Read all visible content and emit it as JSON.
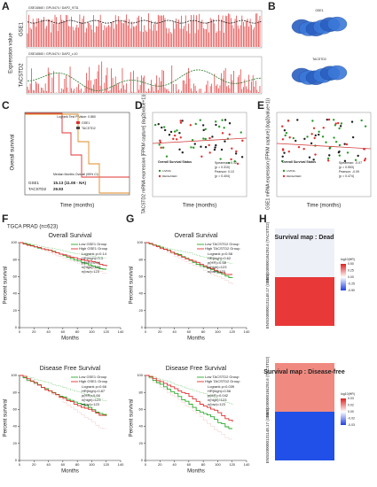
{
  "panels": {
    "A": {
      "label": "A",
      "top_header": "GSE16560 / GPL5474 / DAP2_9731",
      "bottom_header": "GSE16560 / GPL5474 / DAP2_c.10",
      "y_label": "Expression value",
      "genes": [
        "GSE1",
        "TACSTD2"
      ]
    },
    "B": {
      "label": "B",
      "genes": [
        "GSE1",
        "TACSTD2"
      ]
    },
    "C": {
      "label": "C",
      "y_label": "Overall survival",
      "x_label": "Time (months)",
      "logrank": "Logrank Test P Value: 0.880",
      "legend": [
        "GSE1",
        "TACSTD2"
      ],
      "median_title": "Median Months Overall (95% CI)",
      "median_rows": [
        [
          "GSE1",
          "15.13 (11.08 - NA)"
        ],
        [
          "TACSTD2",
          "29.83"
        ]
      ]
    },
    "D": {
      "label": "D",
      "y_label": "TACSTD2 mRNA expression [FPKM capture] (log2(value+1))",
      "x_label": "Time (months)",
      "legend_title": "Overall Survival Status",
      "legend": [
        "LIVING",
        "DECEASED"
      ],
      "stats": [
        "Spearman: 0.12",
        "(p = 0.310)",
        "Pearson: 0.10",
        "(p = 0.404)"
      ]
    },
    "E": {
      "label": "E",
      "y_label": "GSE1 mRNA expression [FPKM capture] (log2(value+1))",
      "x_label": "Time (months)",
      "legend_title": "Overall Survival Status",
      "legend": [
        "LIVING",
        "DECEASED"
      ],
      "stats": [
        "Spearman: -0.07",
        "(p = 0.553)",
        "Pearson: -0.09",
        "(p = 0.474)"
      ]
    },
    "F": {
      "label": "F",
      "cohort": "TGCA PRAD (n=623)",
      "y_label": "Percent survival",
      "x_label": "Months",
      "xticks": [
        0,
        20,
        40,
        60,
        80,
        100,
        120,
        140
      ],
      "yticks": [
        0,
        20,
        40,
        60,
        80,
        100
      ],
      "legend": [
        "Low GSE1 Group",
        "High GSE1 Group"
      ],
      "os": {
        "title": "Overall Survival",
        "stats": [
          "Logrank p=0.14",
          "HR(high)=3.3",
          "p(HR)=0.16",
          "n(high)=123",
          "n(low)=123"
        ]
      },
      "dfs": {
        "title": "Disease Free Survival",
        "stats": [
          "Logrank p=0.66",
          "HR(high)=0.87",
          "p(HR)=0.66",
          "n(high)=123",
          "n(low)=123"
        ]
      }
    },
    "G": {
      "label": "G",
      "y_label": "Percent survival",
      "x_label": "Months",
      "xticks": [
        0,
        20,
        40,
        60,
        80,
        100,
        120,
        140
      ],
      "yticks": [
        0,
        20,
        40,
        60,
        80,
        100
      ],
      "legend": [
        "Low TACSTD2 Group",
        "High TACSTD2 Group"
      ],
      "os": {
        "title": "Overall Survival",
        "stats": [
          "Logrank p=0.58",
          "HR(high)=0.62",
          "p(HR)=0.58",
          "n(high)=123",
          "n(low)=123"
        ]
      },
      "dfs": {
        "title": "Disease Free Survival",
        "stats": [
          "Logrank p=0.039",
          "HR(high)=0.56",
          "p(HR)=0.042",
          "n(high)=123",
          "n(low)=123"
        ]
      }
    },
    "H": {
      "label": "H",
      "rows": [
        "ENSG00000184292.6 (TACSTD2)",
        "ENSG00000131148.17 (GSE1)"
      ],
      "dead": {
        "title": "Survival map : Dead",
        "legend_title": "log10(HR)",
        "ticks": [
          "0.50",
          "0.25",
          "0.00",
          "-0.25",
          "-0.50"
        ]
      },
      "dfs": {
        "title": "Survival map : Disease-free",
        "legend_title": "log10(HR)",
        "ticks": [
          "0.03",
          "0.02",
          "0.00",
          "-0.02",
          "-0.03"
        ]
      }
    }
  }
}
